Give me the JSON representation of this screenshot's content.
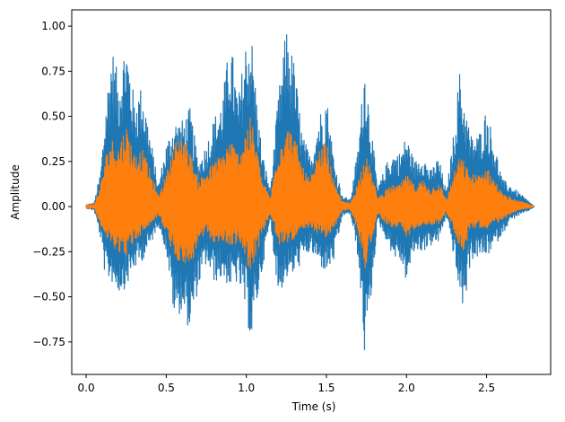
{
  "chart_data": {
    "type": "line",
    "title": "",
    "xlabel": "Time (s)",
    "ylabel": "Amplitude",
    "xlim": [
      -0.09,
      2.9
    ],
    "ylim": [
      -0.93,
      1.09
    ],
    "x_ticks": [
      0.0,
      0.5,
      1.0,
      1.5,
      2.0,
      2.5
    ],
    "x_tick_labels": [
      "0.0",
      "0.5",
      "1.0",
      "1.5",
      "2.0",
      "2.5"
    ],
    "y_ticks": [
      -0.75,
      -0.5,
      -0.25,
      0.0,
      0.25,
      0.5,
      0.75,
      1.0
    ],
    "y_tick_labels": [
      "−0.75",
      "−0.50",
      "−0.25",
      "0.00",
      "0.25",
      "0.50",
      "0.75",
      "1.00"
    ],
    "grid": false,
    "legend": "none",
    "x_range": [
      0.0,
      2.8
    ],
    "series": [
      {
        "color": "#1f77b4",
        "description": "waveform envelope (max/min amplitude vs time)",
        "envelope": [
          [
            0.0,
            0.01,
            -0.01
          ],
          [
            0.05,
            0.02,
            -0.02
          ],
          [
            0.09,
            0.2,
            -0.18
          ],
          [
            0.12,
            0.55,
            -0.4
          ],
          [
            0.16,
            0.9,
            -0.42
          ],
          [
            0.2,
            0.72,
            -0.48
          ],
          [
            0.25,
            0.95,
            -0.45
          ],
          [
            0.3,
            0.6,
            -0.35
          ],
          [
            0.35,
            0.68,
            -0.3
          ],
          [
            0.4,
            0.4,
            -0.22
          ],
          [
            0.45,
            0.12,
            -0.1
          ],
          [
            0.5,
            0.35,
            -0.25
          ],
          [
            0.55,
            0.48,
            -0.62
          ],
          [
            0.6,
            0.48,
            -0.58
          ],
          [
            0.65,
            0.55,
            -0.7
          ],
          [
            0.7,
            0.25,
            -0.45
          ],
          [
            0.75,
            0.35,
            -0.32
          ],
          [
            0.8,
            0.5,
            -0.42
          ],
          [
            0.85,
            0.6,
            -0.4
          ],
          [
            0.9,
            0.95,
            -0.45
          ],
          [
            0.95,
            0.6,
            -0.42
          ],
          [
            1.0,
            0.95,
            -0.6
          ],
          [
            1.03,
            0.99,
            -0.77
          ],
          [
            1.07,
            0.55,
            -0.52
          ],
          [
            1.1,
            0.3,
            -0.35
          ],
          [
            1.15,
            0.1,
            -0.08
          ],
          [
            1.2,
            0.62,
            -0.5
          ],
          [
            1.25,
            1.0,
            -0.4
          ],
          [
            1.3,
            0.8,
            -0.38
          ],
          [
            1.35,
            0.4,
            -0.3
          ],
          [
            1.4,
            0.28,
            -0.25
          ],
          [
            1.45,
            0.5,
            -0.32
          ],
          [
            1.5,
            0.63,
            -0.37
          ],
          [
            1.55,
            0.25,
            -0.3
          ],
          [
            1.6,
            0.06,
            -0.05
          ],
          [
            1.65,
            0.04,
            -0.04
          ],
          [
            1.7,
            0.35,
            -0.3
          ],
          [
            1.74,
            0.82,
            -0.85
          ],
          [
            1.78,
            0.45,
            -0.5
          ],
          [
            1.82,
            0.1,
            -0.08
          ],
          [
            1.88,
            0.25,
            -0.2
          ],
          [
            1.92,
            0.3,
            -0.28
          ],
          [
            1.96,
            0.3,
            -0.3
          ],
          [
            2.0,
            0.4,
            -0.42
          ],
          [
            2.05,
            0.25,
            -0.25
          ],
          [
            2.1,
            0.3,
            -0.25
          ],
          [
            2.15,
            0.2,
            -0.22
          ],
          [
            2.2,
            0.28,
            -0.2
          ],
          [
            2.25,
            0.08,
            -0.05
          ],
          [
            2.3,
            0.45,
            -0.3
          ],
          [
            2.33,
            0.76,
            -0.5
          ],
          [
            2.36,
            0.6,
            -0.58
          ],
          [
            2.4,
            0.4,
            -0.3
          ],
          [
            2.45,
            0.4,
            -0.28
          ],
          [
            2.5,
            0.55,
            -0.28
          ],
          [
            2.55,
            0.35,
            -0.22
          ],
          [
            2.6,
            0.15,
            -0.15
          ],
          [
            2.65,
            0.12,
            -0.08
          ],
          [
            2.7,
            0.08,
            -0.05
          ],
          [
            2.75,
            0.04,
            -0.03
          ],
          [
            2.8,
            0.0,
            0.0
          ]
        ]
      },
      {
        "color": "#ff7f0e",
        "description": "waveform envelope (max/min amplitude vs time)",
        "envelope": [
          [
            0.0,
            0.01,
            -0.01
          ],
          [
            0.05,
            0.01,
            -0.01
          ],
          [
            0.09,
            0.12,
            -0.1
          ],
          [
            0.12,
            0.28,
            -0.18
          ],
          [
            0.16,
            0.38,
            -0.22
          ],
          [
            0.2,
            0.34,
            -0.25
          ],
          [
            0.25,
            0.46,
            -0.27
          ],
          [
            0.3,
            0.3,
            -0.2
          ],
          [
            0.35,
            0.32,
            -0.15
          ],
          [
            0.4,
            0.2,
            -0.1
          ],
          [
            0.45,
            0.06,
            -0.05
          ],
          [
            0.5,
            0.18,
            -0.15
          ],
          [
            0.55,
            0.35,
            -0.3
          ],
          [
            0.6,
            0.42,
            -0.3
          ],
          [
            0.65,
            0.3,
            -0.35
          ],
          [
            0.7,
            0.15,
            -0.2
          ],
          [
            0.75,
            0.2,
            -0.16
          ],
          [
            0.8,
            0.25,
            -0.2
          ],
          [
            0.85,
            0.3,
            -0.2
          ],
          [
            0.9,
            0.38,
            -0.22
          ],
          [
            0.95,
            0.3,
            -0.2
          ],
          [
            1.0,
            0.45,
            -0.3
          ],
          [
            1.03,
            0.5,
            -0.37
          ],
          [
            1.07,
            0.3,
            -0.25
          ],
          [
            1.1,
            0.15,
            -0.15
          ],
          [
            1.15,
            0.05,
            -0.04
          ],
          [
            1.2,
            0.35,
            -0.22
          ],
          [
            1.25,
            0.46,
            -0.2
          ],
          [
            1.3,
            0.4,
            -0.18
          ],
          [
            1.35,
            0.22,
            -0.15
          ],
          [
            1.4,
            0.15,
            -0.12
          ],
          [
            1.45,
            0.3,
            -0.15
          ],
          [
            1.5,
            0.37,
            -0.18
          ],
          [
            1.55,
            0.12,
            -0.12
          ],
          [
            1.6,
            0.03,
            -0.02
          ],
          [
            1.65,
            0.02,
            -0.02
          ],
          [
            1.7,
            0.15,
            -0.15
          ],
          [
            1.74,
            0.3,
            -0.35
          ],
          [
            1.78,
            0.2,
            -0.2
          ],
          [
            1.82,
            0.05,
            -0.04
          ],
          [
            1.88,
            0.1,
            -0.1
          ],
          [
            1.92,
            0.12,
            -0.12
          ],
          [
            1.96,
            0.12,
            -0.12
          ],
          [
            2.0,
            0.18,
            -0.18
          ],
          [
            2.05,
            0.12,
            -0.12
          ],
          [
            2.1,
            0.15,
            -0.1
          ],
          [
            2.15,
            0.1,
            -0.1
          ],
          [
            2.2,
            0.14,
            -0.1
          ],
          [
            2.25,
            0.04,
            -0.03
          ],
          [
            2.3,
            0.2,
            -0.15
          ],
          [
            2.33,
            0.28,
            -0.22
          ],
          [
            2.36,
            0.25,
            -0.25
          ],
          [
            2.4,
            0.18,
            -0.12
          ],
          [
            2.45,
            0.18,
            -0.12
          ],
          [
            2.5,
            0.22,
            -0.12
          ],
          [
            2.55,
            0.15,
            -0.1
          ],
          [
            2.6,
            0.07,
            -0.07
          ],
          [
            2.65,
            0.05,
            -0.04
          ],
          [
            2.7,
            0.03,
            -0.02
          ],
          [
            2.75,
            0.02,
            -0.01
          ],
          [
            2.8,
            0.0,
            0.0
          ]
        ]
      }
    ]
  }
}
